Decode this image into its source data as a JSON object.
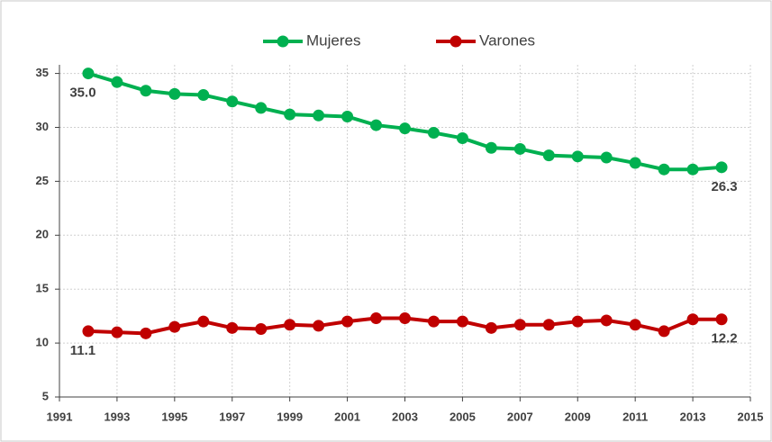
{
  "chart_data": {
    "type": "line",
    "x": [
      1992,
      1993,
      1994,
      1995,
      1996,
      1997,
      1998,
      1999,
      2000,
      2001,
      2002,
      2003,
      2004,
      2005,
      2006,
      2007,
      2008,
      2009,
      2010,
      2011,
      2012,
      2013,
      2014
    ],
    "series": [
      {
        "name": "Mujeres",
        "color": "#00b050",
        "values": [
          35.0,
          34.2,
          33.4,
          33.1,
          33.0,
          32.4,
          31.8,
          31.2,
          31.1,
          31.0,
          30.2,
          29.9,
          29.5,
          29.0,
          28.1,
          28.0,
          27.4,
          27.3,
          27.2,
          26.7,
          26.1,
          26.1,
          26.3
        ],
        "value_labels": [
          "35.0",
          null,
          null,
          null,
          null,
          null,
          null,
          null,
          null,
          null,
          null,
          null,
          null,
          null,
          null,
          null,
          null,
          null,
          null,
          null,
          null,
          null,
          "26.3"
        ]
      },
      {
        "name": "Varones",
        "color": "#c00000",
        "values": [
          11.1,
          11.0,
          10.9,
          11.5,
          12.0,
          11.4,
          11.3,
          11.7,
          11.6,
          12.0,
          12.3,
          12.3,
          12.0,
          12.0,
          11.4,
          11.7,
          11.7,
          12.0,
          12.1,
          11.7,
          11.1,
          12.2,
          12.2
        ],
        "value_labels": [
          "11.1",
          null,
          null,
          null,
          null,
          null,
          null,
          null,
          null,
          null,
          null,
          null,
          null,
          null,
          null,
          null,
          null,
          null,
          null,
          null,
          null,
          null,
          "12.2"
        ]
      }
    ],
    "xlim": [
      1991,
      2015
    ],
    "xticks": [
      1991,
      1993,
      1995,
      1997,
      1999,
      2001,
      2003,
      2005,
      2007,
      2009,
      2011,
      2013,
      2015
    ],
    "ylim": [
      5,
      35.8
    ],
    "yticks": [
      5,
      10,
      15,
      20,
      25,
      30,
      35
    ],
    "grid": true,
    "legend": "top"
  }
}
